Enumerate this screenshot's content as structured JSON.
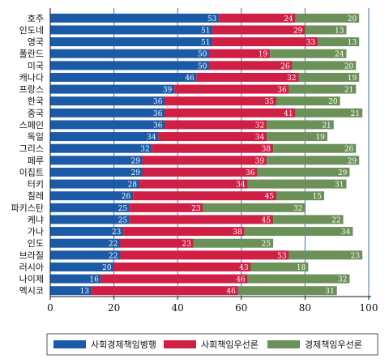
{
  "chart_data": {
    "type": "bar",
    "stacked": true,
    "orientation": "horizontal",
    "xlim": [
      0,
      100
    ],
    "xticks": [
      "0",
      "20",
      "40",
      "60",
      "80",
      "100"
    ],
    "grid": "vertical",
    "legend_position": "bottom",
    "categories": [
      "호주",
      "인도네",
      "영국",
      "폴란드",
      "미국",
      "캐나다",
      "프랑스",
      "한국",
      "중국",
      "스페인",
      "독일",
      "그리스",
      "페루",
      "이집트",
      "터키",
      "칠레",
      "파키스탄",
      "케냐",
      "가나",
      "인도",
      "브라질",
      "러시아",
      "나이제",
      "멕시코"
    ],
    "series": [
      {
        "name": "사회경제책임병행",
        "color": "#1a5aa6",
        "values": [
          53,
          51,
          51,
          50,
          50,
          46,
          39,
          36,
          36,
          36,
          34,
          32,
          29,
          29,
          28,
          26,
          25,
          25,
          23,
          22,
          22,
          20,
          16,
          13
        ]
      },
      {
        "name": "사회책임우선론",
        "color": "#cf1f45",
        "values": [
          24,
          29,
          33,
          19,
          26,
          32,
          36,
          35,
          41,
          32,
          34,
          38,
          39,
          36,
          34,
          45,
          23,
          45,
          38,
          23,
          53,
          43,
          46,
          46
        ]
      },
      {
        "name": "경제책임우선론",
        "color": "#6b9158",
        "values": [
          20,
          13,
          13,
          24,
          20,
          19,
          21,
          20,
          21,
          21,
          19,
          26,
          29,
          29,
          31,
          15,
          32,
          22,
          34,
          25,
          23,
          18,
          32,
          31
        ]
      }
    ]
  }
}
